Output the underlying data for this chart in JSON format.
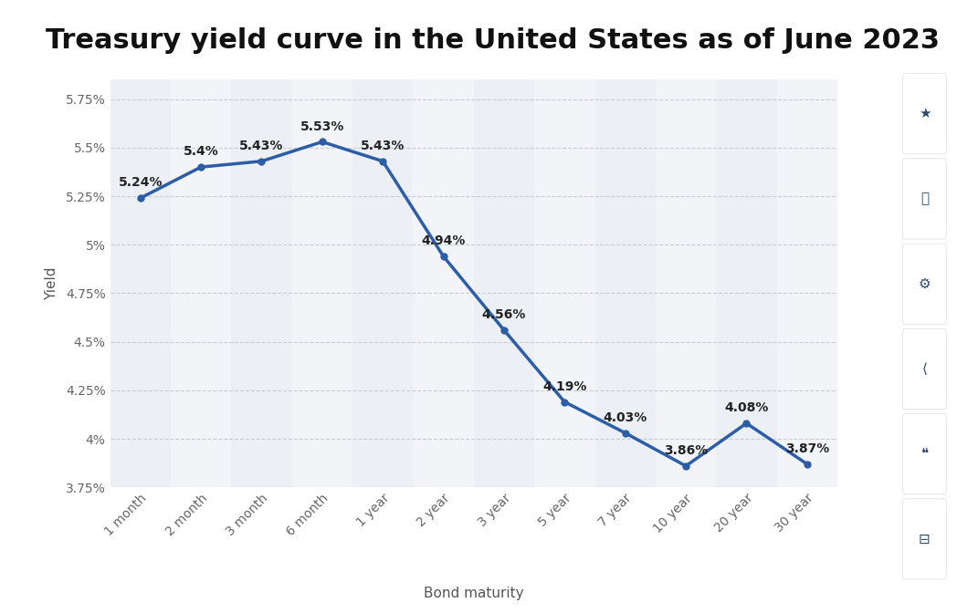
{
  "title": "Treasury yield curve in the United States as of June 2023",
  "xlabel": "Bond maturity",
  "ylabel": "Yield",
  "categories": [
    "1 month",
    "2 month",
    "3 month",
    "6 month",
    "1 year",
    "2 year",
    "3 year",
    "5 year",
    "7 year",
    "10 year",
    "20 year",
    "30 year"
  ],
  "values": [
    5.24,
    5.4,
    5.43,
    5.53,
    5.43,
    4.94,
    4.56,
    4.19,
    4.03,
    3.86,
    4.08,
    3.87
  ],
  "labels": [
    "5.24%",
    "5.4%",
    "5.43%",
    "5.53%",
    "5.43%",
    "4.94%",
    "4.56%",
    "4.19%",
    "4.03%",
    "3.86%",
    "4.08%",
    "3.87%"
  ],
  "line_color": "#2b5ea7",
  "marker_color": "#2b5ea7",
  "background_outer": "#ffffff",
  "background_chart": "#f2f4f7",
  "background_stripe": "#e8ebf0",
  "title_fontsize": 22,
  "axis_label_fontsize": 11,
  "tick_fontsize": 10,
  "data_label_fontsize": 10,
  "ylim": [
    3.75,
    5.85
  ],
  "yticks": [
    3.75,
    4.0,
    4.25,
    4.5,
    4.75,
    5.0,
    5.25,
    5.5,
    5.75
  ],
  "ytick_labels": [
    "3.75%",
    "4%",
    "4.25%",
    "4.5%",
    "4.75%",
    "5%",
    "5.25%",
    "5.5%",
    "5.75%"
  ],
  "line_width": 2.5,
  "marker_size": 5,
  "icon_bg": "#f0f2f5",
  "icon_btn_bg": "#ffffff",
  "icon_color": "#2d4a6e"
}
